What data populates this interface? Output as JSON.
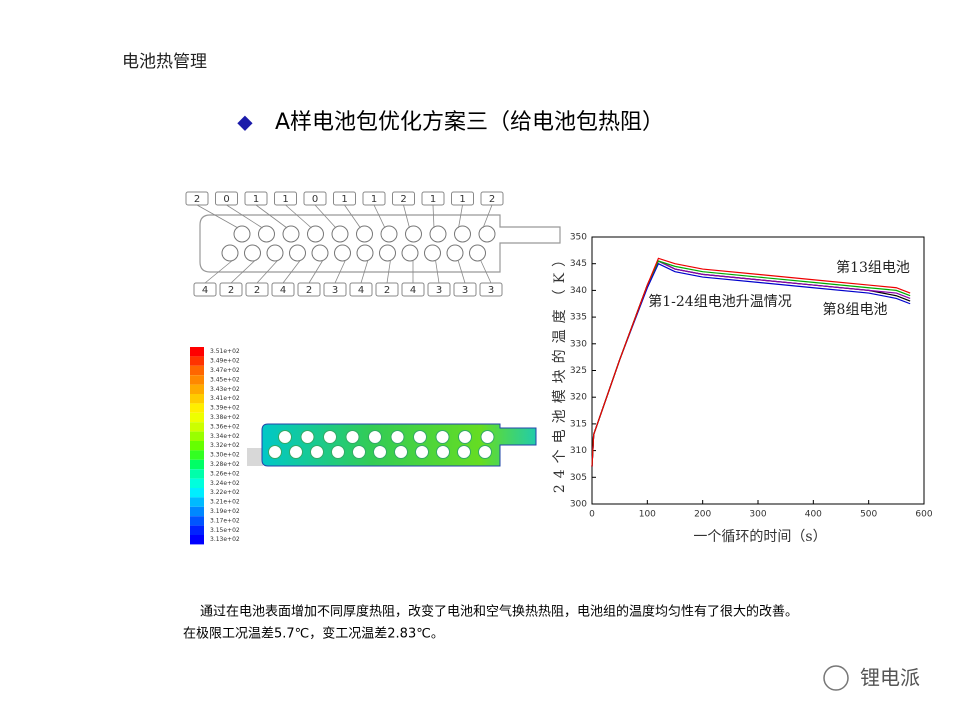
{
  "header": {
    "section": "电池热管理",
    "title": "A样电池包优化方案三（给电池包热阻）"
  },
  "diagram": {
    "top_labels": [
      "2",
      "0",
      "1",
      "1",
      "0",
      "1",
      "1",
      "2",
      "1",
      "1",
      "2"
    ],
    "bottom_labels": [
      "4",
      "2",
      "2",
      "4",
      "2",
      "3",
      "4",
      "2",
      "4",
      "3",
      "3",
      "3"
    ]
  },
  "contour_legend": {
    "labels": [
      "3.51e+02",
      "3.49e+02",
      "3.47e+02",
      "3.45e+02",
      "3.43e+02",
      "3.41e+02",
      "3.39e+02",
      "3.38e+02",
      "3.36e+02",
      "3.34e+02",
      "3.32e+02",
      "3.30e+02",
      "3.28e+02",
      "3.26e+02",
      "3.24e+02",
      "3.22e+02",
      "3.21e+02",
      "3.19e+02",
      "3.17e+02",
      "3.15e+02",
      "3.13e+02"
    ]
  },
  "chart_data": {
    "type": "line",
    "x_label": "一个循环的时间（s）",
    "y_label": "24个电池模块的温度（K）",
    "annotations": [
      "第13组电池",
      "第1-24组电池升温情况",
      "第8组电池"
    ],
    "xlim": [
      0,
      600
    ],
    "xticks": [
      0,
      100,
      200,
      300,
      400,
      500,
      600
    ],
    "ylim": [
      300,
      350
    ],
    "yticks": [
      300,
      305,
      310,
      315,
      320,
      325,
      330,
      335,
      340,
      345,
      350
    ],
    "x": [
      0,
      3,
      50,
      100,
      120,
      150,
      200,
      300,
      400,
      500,
      550,
      575
    ],
    "series": [
      {
        "color": "#000000",
        "values": [
          307,
          313,
          327,
          341,
          345.5,
          344,
          343,
          342,
          341,
          340,
          339,
          338
        ]
      },
      {
        "color": "#0000cc",
        "values": [
          307,
          313,
          327,
          340.5,
          345,
          343.5,
          342.5,
          341.5,
          340.5,
          339.5,
          338.5,
          337.5
        ]
      },
      {
        "color": "#8800aa",
        "values": [
          307,
          313,
          327,
          341,
          345.5,
          344,
          343,
          342,
          341,
          340,
          339.5,
          338.5
        ]
      },
      {
        "color": "#00aa00",
        "values": [
          307,
          313,
          327,
          341,
          345.5,
          344.5,
          343.5,
          342.5,
          341.5,
          340.5,
          340,
          339
        ]
      },
      {
        "color": "#ee0000",
        "values": [
          307,
          313,
          327,
          341,
          346,
          345,
          344,
          343,
          342,
          341,
          340.5,
          339.5
        ]
      }
    ]
  },
  "footer": {
    "line1": "通过在电池表面增加不同厚度热阻，改变了电池和空气换热热阻，电池组的温度均匀性有了很大的改善。",
    "line2": "在极限工况温差5.7℃，变工况温差2.83℃。"
  },
  "watermark": "锂电派"
}
